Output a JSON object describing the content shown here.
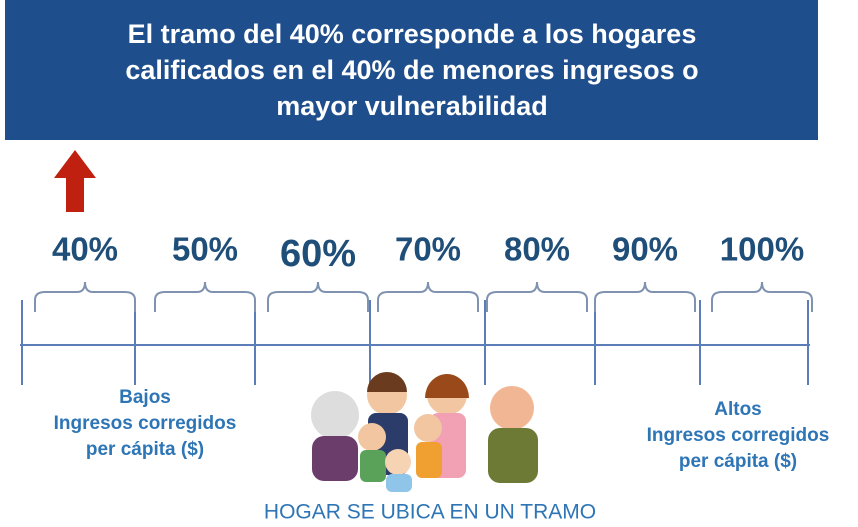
{
  "header": {
    "lines": [
      "El tramo del 40% corresponde a los hogares",
      "calificados en el 40% de menores ingresos o",
      "mayor vulnerabilidad"
    ]
  },
  "scale": {
    "labels": [
      "40%",
      "50%",
      "60%",
      "70%",
      "80%",
      "90%",
      "100%"
    ]
  },
  "left_label": {
    "lines": [
      "Bajos",
      "Ingresos  corregidos",
      "per cápita ($)"
    ]
  },
  "right_label": {
    "lines": [
      "Altos",
      "Ingresos  corregidos",
      "per cápita ($)"
    ]
  },
  "caption": "HOGAR SE UBICA EN UN TRAMO"
}
